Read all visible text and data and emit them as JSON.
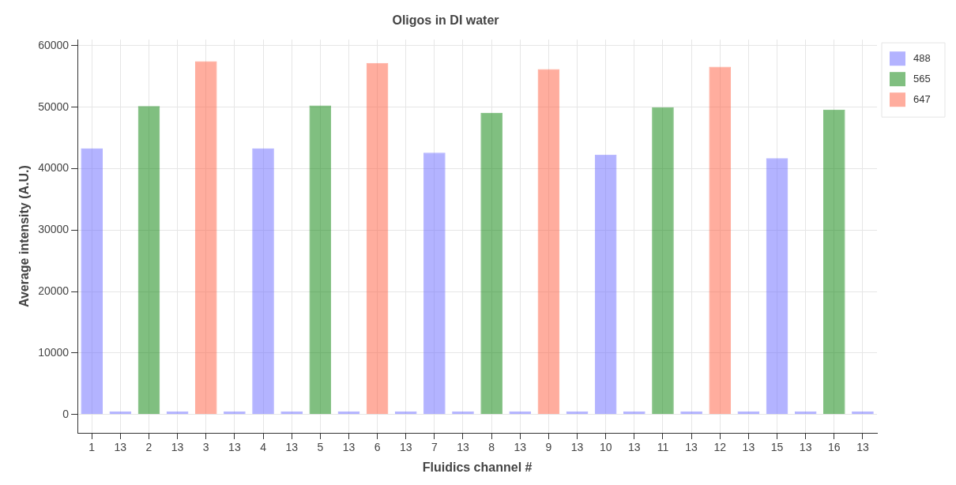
{
  "chart_data": {
    "type": "bar",
    "title": "Oligos in DI water",
    "xlabel": "Fluidics channel #",
    "ylabel": "Average intensity (A.U.)",
    "categories": [
      "1",
      "13",
      "2",
      "13",
      "3",
      "13",
      "4",
      "13",
      "5",
      "13",
      "6",
      "13",
      "7",
      "13",
      "8",
      "13",
      "9",
      "13",
      "10",
      "13",
      "11",
      "13",
      "12",
      "13",
      "15",
      "13",
      "16",
      "13"
    ],
    "series": [
      {
        "name": "488",
        "color": "#b3b3ff",
        "values": [
          43300,
          500,
          null,
          500,
          null,
          500,
          43300,
          500,
          null,
          500,
          null,
          500,
          42600,
          500,
          null,
          500,
          null,
          500,
          42300,
          500,
          null,
          500,
          null,
          500,
          41700,
          500,
          null,
          500
        ]
      },
      {
        "name": "565",
        "color": "#80bf80",
        "values": [
          null,
          null,
          50200,
          null,
          null,
          null,
          null,
          null,
          50300,
          null,
          null,
          null,
          null,
          null,
          49100,
          null,
          null,
          null,
          null,
          null,
          50000,
          null,
          null,
          null,
          null,
          null,
          49600,
          null
        ]
      },
      {
        "name": "647",
        "color": "#ffad9e",
        "values": [
          null,
          null,
          null,
          null,
          57500,
          null,
          null,
          null,
          null,
          null,
          57200,
          null,
          null,
          null,
          null,
          null,
          56200,
          null,
          null,
          null,
          null,
          null,
          56600,
          null,
          null,
          null,
          null,
          null
        ]
      }
    ],
    "ylim": [
      -3000,
      61000
    ],
    "yticks": [
      0,
      10000,
      20000,
      30000,
      40000,
      50000,
      60000
    ],
    "grid": true,
    "legend": "top right"
  }
}
